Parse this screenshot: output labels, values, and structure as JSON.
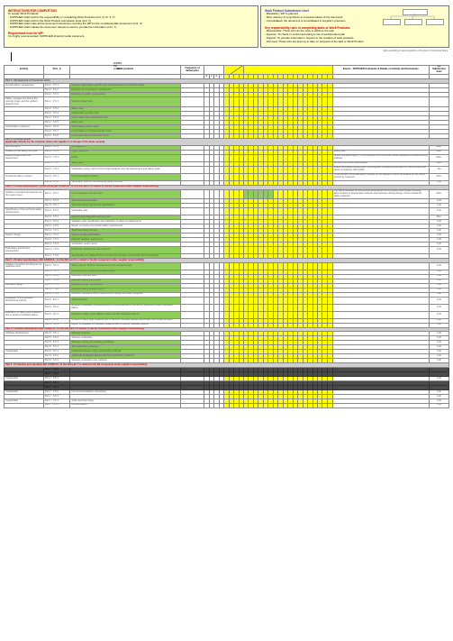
{
  "header": {
    "instructions_title": "INSTRUCTIONS FOR COMPLETION",
    "instructions_body": [
      "To supply Work Products:",
      "- SUPPLIER shall confirm the responsibility in completing Work Products (Col. Q, R, S, T)",
      "- SUPPLIER shall confirm the Work Product submission level (Col. V)",
      "- SUPPLIER shall make all the document references covering the WP for the considered EE component (Col. X)",
      "- SUPPLIER shall indicate the document reference used to provide the information (Col. Y)"
    ],
    "requirement_title": "Requirement level for WP:",
    "requirement_body": "It is highly recommended: SUPPLIER should provide document",
    "right1_title": "Work Product Submission Level",
    "right1_body": [
      "- Mandatory: WP is planned",
      "- Mod. delivery of a synthesis or a topical subset of the document",
      "- Consolidated: the document is consolidated in supplier's premises"
    ],
    "right2_title": "Key responsibility rules in completing tasks or Work Products:",
    "right2_body": [
      "- Responsible: Those who do the work to achieve the task",
      "- Approve: To check or control according to list of work/product plan",
      "- Support: To provide information / support in the creation of work products",
      "- Informed: Those who are kept up to date on progress of the task or Work Product"
    ],
    "split_text": "Split according to decomposition of the item in functional block",
    "wobs": "WOBS\nPH\nAdvice"
  },
  "columns": {
    "activity": "Activity",
    "part": "Part - §",
    "wp": "Work products",
    "freq": "Frequency of\ndelivery/rev.",
    "supplier": "Events - SUPPLIER Comments\n& Details on Activity and Documents",
    "subm": "WP\nSubmission\nlevel"
  },
  "tiny_headers_left": [
    "R",
    "A",
    "S",
    "I",
    " ",
    " ",
    " ",
    " "
  ],
  "tiny_headers_right_count": 18,
  "sections": [
    {
      "title": "Part 2 - Management of functional safety",
      "rows": [
        {
          "a": "Overall safety management",
          "p": "Part 2 - 5.5.1",
          "wp": "Supplier organization specific rules and processes for functional safety",
          "kind": "grn",
          "span": 1
        },
        {
          "a": "",
          "p": "Part 2 - 5.5.2",
          "wp": "Evidence of competence management",
          "kind": "grn"
        },
        {
          "a": "",
          "p": "Part 2 - 5.5.3",
          "wp": "Evidence of quality management",
          "kind": "grn"
        },
        {
          "a": "Safety management during the concept phase and the product development",
          "p": "Part 2 - 6.5.1",
          "wp": "Supplier project plan",
          "kind": "grn"
        },
        {
          "a": "",
          "p": "Part 2 - 6.5.2",
          "wp": "Safety case",
          "kind": "grn"
        },
        {
          "a": "",
          "p": "Part 2 - 6.5.3",
          "wp": "Organization-specific rules",
          "kind": "grn"
        },
        {
          "a": "",
          "p": "Part 2 - 6.5.4",
          "wp": "Confirmation plan assessment plan",
          "kind": "grn"
        },
        {
          "a": "",
          "p": "Part 2 - 6.5.5",
          "wp": "Safety plan",
          "kind": "grn"
        },
        {
          "a": "Confirmation measures",
          "p": "Part 2 - 6.5.6",
          "wp": "Confirmation review report",
          "kind": "grn"
        },
        {
          "a": "",
          "p": "Part 2 - 6.5.7",
          "wp": "Confirmation on functional audit report",
          "kind": "grn"
        },
        {
          "a": "",
          "p": "Part 2 - 6.5.8",
          "wp": "Functional safety assessment report",
          "kind": "grn"
        }
      ]
    },
    {
      "title": "Part 3 - Concept phase",
      "subtitle": "[applicable directly by the customer unless the supplier is in charge of the whole system]",
      "rows": [
        {
          "a": "Item definition",
          "p": "Part 3 - 5.5.1",
          "wp": "Item definition",
          "kind": "grn",
          "subm": "Mod."
        },
        {
          "a": "Initiation of the safety life cycle",
          "p": "Part 3 - 6.5.1",
          "wp": "Impact analysis",
          "kind": "grn",
          "sup": "Safety plan",
          "subm": "Mod."
        },
        {
          "a": "Hazard analysis and risk assessment",
          "p": "Part 3 - 7.5.1",
          "wp": "HARA",
          "kind": "grn",
          "sup": "Where functional safety: This procedure is to be defined. HARA depends on vehicle driving analysis.",
          "subm": "Mod."
        },
        {
          "a": "",
          "p": "Part 3 - 7.5.2",
          "wp": "Safety goal",
          "kind": "grn",
          "sup": "Derived from HARA specification",
          "subm": "Mod."
        },
        {
          "a": "",
          "p": "Part 3 - 7.5.3",
          "wp": "Verification review report of the hazard analysis and risk assessment and safety goals",
          "kind": "",
          "sup": "Where Verification review report (not supplier). Requires justification on method used and check compliance with HARA.",
          "subm": "Yes"
        },
        {
          "a": "Functional safety concept",
          "p": "Part 3 - 8.5.1",
          "wp": "Functional safety concept",
          "kind": "grn",
          "sup": "To be defined: functional safety concept by the supplier to serve as a basis for the HARA revised by customer.",
          "subm": "Mod."
        },
        {
          "a": "",
          "p": "Part 3 - 8.5.2",
          "wp": "Verification report of the functional safety concept",
          "kind": "",
          "subm": "Full"
        }
      ]
    },
    {
      "title": "Part 4 - Product development: system level [EE CAREFUL : In this DIA part 4 is related to the EE component under supplier responsibility]",
      "title_red": true,
      "rows": [
        {
          "a": "Initiation of product development at the system level",
          "p": "Part 4 - 5.5.2",
          "wp": "From integration and test plan",
          "kind": "grn",
          "ygrid": "mark",
          "sup": "The safety activities for the product development at the system level phase including determination of appropriate methods and measures during design, these include the safety analyses.",
          "subm": "Mod."
        },
        {
          "a": "",
          "p": "Part 4 - 5.5.3",
          "wp": "Technical documentation",
          "kind": "grn",
          "subm": "Full"
        },
        {
          "a": "",
          "p": "Part 4 - 6.5.1",
          "wp": "Technical safety requirement specification",
          "kind": "grn",
          "subm": "Full"
        },
        {
          "a": "Specification of the technical safety requirements",
          "p": "Part 4 - 6.5.2",
          "wp": "Verification plan",
          "kind": "",
          "subm": "Full"
        },
        {
          "a": "",
          "p": "Part 4 - 6.5.3",
          "wp": "System level integration and test plan",
          "kind": "grn",
          "subm": "Mod."
        },
        {
          "a": "",
          "p": "Part 4 - 6.5.4",
          "wp": "Validation plan specification and validation of safety & requirements",
          "kind": "",
          "subm": "Full"
        },
        {
          "a": "",
          "p": "Part 4 - 6.5.5",
          "wp": "Report on review of technical safety requirements",
          "kind": "",
          "subm": "Full"
        },
        {
          "a": "",
          "p": "Part 4 - 7.5.1",
          "wp": "Technical safety concept",
          "kind": "grn",
          "subm": "Full"
        },
        {
          "a": "System design",
          "p": "Part 4 - 7.5.2",
          "wp": "System design specification",
          "kind": "grn",
          "subm": "Full"
        },
        {
          "a": "",
          "p": "Part 4 - 7.5.3",
          "wp": "HW-SW interface requirement",
          "kind": "grn",
          "subm": "Full"
        },
        {
          "a": "",
          "p": "Part 4 - 7.5.4",
          "wp": "Verification review report",
          "kind": "",
          "subm": "Full"
        },
        {
          "a": "Preliminary architecture assumptions",
          "p": "Part 4 - 7.5.5",
          "wp": "Preliminary architecture assumptions",
          "kind": "grn",
          "subm": "Full"
        },
        {
          "a": "",
          "p": "Part 4 - 7.5.6",
          "wp": "Specification of requirements for component operation and service decommissioning",
          "kind": "grn"
        }
      ]
    },
    {
      "title": "Part 5 - Product development: [EE CAREFUL : In this DIA part 5 is related to the EE component under supplier responsibility]",
      "title_red": true,
      "rows": [
        {
          "a": "Initiation of product development at hardware level",
          "p": "Part 5 - 5.5.1",
          "wp": "Safety plan for Product development at the hardware level",
          "kind": "grn",
          "subm": "Full"
        },
        {
          "a": "",
          "p": "Part 5 - 6.5.1",
          "wp": "Hardware safety requirement specification",
          "kind": "grn",
          "subm": "Full"
        },
        {
          "a": "",
          "p": "Part 5 - 6.5.2",
          "wp": "Hardware interface plan",
          "kind": "",
          "subm": "Full"
        },
        {
          "a": "",
          "p": "Part 5 - 6.5.3",
          "wp": "Hardware safety plan review",
          "kind": "grn",
          "subm": "Full"
        },
        {
          "a": "Hardware design",
          "p": "Part 5 - 7.5.1",
          "wp": "Hardware design specification",
          "kind": "grn",
          "subm": "Full"
        },
        {
          "a": "",
          "p": "Part 5 - 7.5.2",
          "wp": "Hardware safety analysis report",
          "kind": "grn",
          "subm": "Full"
        },
        {
          "a": "",
          "p": "Part 5 - 7.5.3",
          "wp": "Review of hardware safety requirements, design and safety analyses",
          "kind": "",
          "subm": "Full"
        },
        {
          "a": "Evaluation of the hardware architectural metrics",
          "p": "Part 5 - 8.5.1",
          "wp": "Target/Analysis",
          "kind": "grn",
          "subm": "Full"
        },
        {
          "a": "",
          "p": "Part 5 - 8.5.2",
          "wp": "Review of evaluation of effectiveness of the architecture of the item to cope with random hardware failure",
          "kind": "",
          "subm": "Full"
        },
        {
          "a": "Evaluation of safety goal violations due to random hardware failure",
          "p": "Part 5 - 9.5.1",
          "wp": "Analysis of safety goal violations due to random hardware failures",
          "kind": "grn",
          "subm": "Full"
        },
        {
          "a": "",
          "p": "Part 5 - 9.5.2",
          "wp": "Review of safety goal violations due to random hardware failures specification and implementation",
          "kind": "",
          "subm": "Full"
        },
        {
          "a": "",
          "p": "Part 5 - 9.5.3",
          "wp": "Report of evaluation of residual violations due to random hardware failures",
          "kind": "",
          "subm": "Full"
        }
      ]
    },
    {
      "title": "Part 6 - Software development [EE CAREFUL : In this DIA part 6 is related to the EE component under supplier responsibility]",
      "title_red": true,
      "rows": [
        {
          "a": "Software development",
          "p": "Part 6 - 5.5.1",
          "wp": "Software process",
          "kind": "grn",
          "subm": "Full"
        },
        {
          "a": "",
          "p": "Part 6 - 5.5.2",
          "wp": "Software verification",
          "kind": "",
          "subm": "Full"
        },
        {
          "a": "",
          "p": "Part 6 - 5.5.3",
          "wp": "Software coding and modeling guidelines",
          "kind": "grn",
          "subm": "Full"
        },
        {
          "a": "",
          "p": "Part 6 - 5.5.4",
          "wp": "Tool application guidelines",
          "kind": "grn",
          "subm": "Full"
        },
        {
          "a": "If applicable",
          "p": "Part 6 - 6.5.1",
          "wp": "Additional software safety specification (refined)",
          "kind": "grn",
          "subm": "Full"
        },
        {
          "a": "",
          "p": "Part 6 - 6.5.2",
          "wp": "Additional hardware/software interface specification (refined)",
          "kind": "grn",
          "subm": "Full"
        },
        {
          "a": "",
          "p": "Part 6 - 6.5.3",
          "wp": "Software verification plan (refined)",
          "kind": "",
          "subm": "Full"
        }
      ]
    },
    {
      "title": "Part 7 - Production and operation [EE CAREFUL: In this DIA part 7 is related to the EE component under supplier responsibility]",
      "title_red": true,
      "rows": [
        {
          "a": "(dark)",
          "p": "Part 7 - 5.5.1",
          "wp": "",
          "kind": "dark"
        },
        {
          "a": "(dark)",
          "p": "Part 7 - 5.5.2",
          "wp": "",
          "kind": "dark"
        },
        {
          "a": "If applicable",
          "p": "Part 7 - 5.5.3",
          "wp": "",
          "kind": "",
          "subm": "Full"
        },
        {
          "a": "(dark)",
          "p": "Part 7 - 5.5.4",
          "wp": "",
          "kind": "dark"
        },
        {
          "a": "(dark)",
          "p": "Part 7 - 6.5.1",
          "wp": "",
          "kind": "dark"
        },
        {
          "a": "If applicable",
          "p": "Part 7 - 6.5.2",
          "wp": "Functional installation instructions",
          "kind": "",
          "subm": "Full"
        },
        {
          "a": "",
          "p": "Part 7 - 6.5.3",
          "wp": "",
          "kind": "",
          "subm": "Full"
        },
        {
          "a": "If applicable",
          "p": "Part 7 - 6.5.4",
          "wp": "Audit report/summary",
          "kind": "",
          "subm": "Full"
        },
        {
          "a": "",
          "p": "Part 7 - 6.5.5",
          "wp": "Documentation",
          "kind": "",
          "subm": "Full"
        }
      ]
    }
  ]
}
